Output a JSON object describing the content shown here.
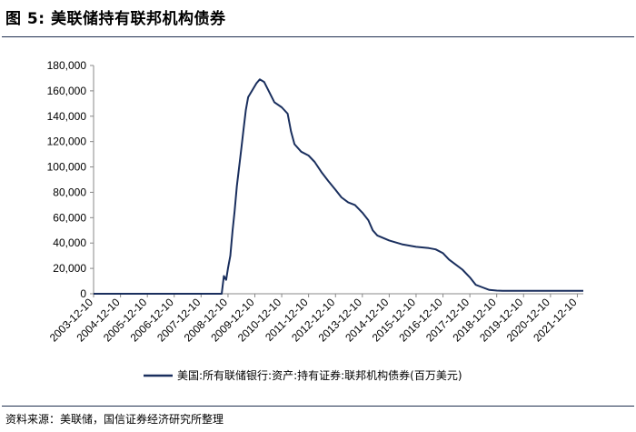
{
  "header": {
    "figure_title": "图 5:  美联储持有联邦机构债券"
  },
  "footer": {
    "source": "资料来源：美联储，国信证券经济研究所整理"
  },
  "colors": {
    "series": "#1a2f5e",
    "axis": "#888888",
    "rule": "#1f2f4f"
  },
  "chart_data": {
    "type": "line",
    "title": "",
    "xlabel": "",
    "ylabel": "",
    "grid": false,
    "legend_position": "bottom-center",
    "ylim": [
      0,
      180000
    ],
    "yticks": [
      0,
      20000,
      40000,
      60000,
      80000,
      100000,
      120000,
      140000,
      160000,
      180000
    ],
    "ytick_labels": [
      "0",
      "20,000",
      "40,000",
      "60,000",
      "80,000",
      "100,000",
      "120,000",
      "140,000",
      "160,000",
      "180,000"
    ],
    "xlim": [
      "2003-12-10",
      "2022-03-01"
    ],
    "xtick_labels": [
      "2003-12-10",
      "2004-12-10",
      "2005-12-10",
      "2006-12-10",
      "2007-12-10",
      "2008-12-10",
      "2009-12-10",
      "2010-12-10",
      "2011-12-10",
      "2012-12-10",
      "2013-12-10",
      "2014-12-10",
      "2015-12-10",
      "2016-12-10",
      "2017-12-10",
      "2018-12-10",
      "2019-12-10",
      "2020-12-10",
      "2021-12-10"
    ],
    "series": [
      {
        "name": "美国:所有联储银行:资产:持有证券:联邦机构债券(百万美元)",
        "points": [
          [
            "2003-12-10",
            0
          ],
          [
            "2008-09-01",
            0
          ],
          [
            "2008-09-15",
            0
          ],
          [
            "2008-10-15",
            14000
          ],
          [
            "2008-11-15",
            11000
          ],
          [
            "2008-12-10",
            20000
          ],
          [
            "2009-01-10",
            30000
          ],
          [
            "2009-02-10",
            50000
          ],
          [
            "2009-03-10",
            65000
          ],
          [
            "2009-04-10",
            85000
          ],
          [
            "2009-05-10",
            100000
          ],
          [
            "2009-06-10",
            115000
          ],
          [
            "2009-07-10",
            130000
          ],
          [
            "2009-08-10",
            145000
          ],
          [
            "2009-09-10",
            155000
          ],
          [
            "2009-11-01",
            160000
          ],
          [
            "2010-01-01",
            166000
          ],
          [
            "2010-02-15",
            169000
          ],
          [
            "2010-04-15",
            167000
          ],
          [
            "2010-06-15",
            160000
          ],
          [
            "2010-09-01",
            151000
          ],
          [
            "2010-12-10",
            147000
          ],
          [
            "2011-03-01",
            142000
          ],
          [
            "2011-04-15",
            128000
          ],
          [
            "2011-06-01",
            118000
          ],
          [
            "2011-09-01",
            112000
          ],
          [
            "2011-12-10",
            109000
          ],
          [
            "2012-03-01",
            104000
          ],
          [
            "2012-06-01",
            96000
          ],
          [
            "2012-09-01",
            89000
          ],
          [
            "2012-12-10",
            82000
          ],
          [
            "2013-03-01",
            76000
          ],
          [
            "2013-06-01",
            72000
          ],
          [
            "2013-09-01",
            70000
          ],
          [
            "2013-12-10",
            64000
          ],
          [
            "2014-03-01",
            58000
          ],
          [
            "2014-05-01",
            50000
          ],
          [
            "2014-07-01",
            46000
          ],
          [
            "2014-12-10",
            42000
          ],
          [
            "2015-06-01",
            39000
          ],
          [
            "2015-12-10",
            37000
          ],
          [
            "2016-06-01",
            36000
          ],
          [
            "2016-09-01",
            35000
          ],
          [
            "2016-12-10",
            32000
          ],
          [
            "2017-03-01",
            27000
          ],
          [
            "2017-06-01",
            23000
          ],
          [
            "2017-09-01",
            19000
          ],
          [
            "2017-12-10",
            13000
          ],
          [
            "2018-03-01",
            7000
          ],
          [
            "2018-06-01",
            5000
          ],
          [
            "2018-09-01",
            3000
          ],
          [
            "2018-12-10",
            2500
          ],
          [
            "2019-03-01",
            2400
          ],
          [
            "2019-06-01",
            2300
          ],
          [
            "2019-12-10",
            2300
          ],
          [
            "2020-12-10",
            2300
          ],
          [
            "2021-12-10",
            2300
          ],
          [
            "2022-03-01",
            2300
          ]
        ]
      }
    ]
  }
}
